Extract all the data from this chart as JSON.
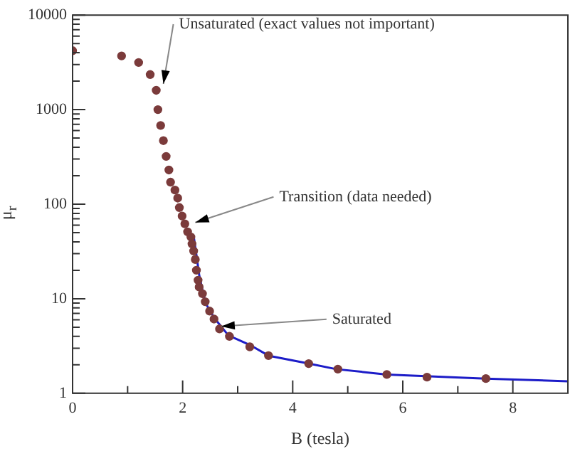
{
  "chart_data": {
    "type": "scatter",
    "xlabel": "B (tesla)",
    "ylabel": "μ$_{r}$",
    "log": "y",
    "grid": false,
    "legend": false,
    "xlim": [
      0,
      9
    ],
    "xticks": [
      0,
      {
        "value": 1,
        "label": null
      },
      2,
      {
        "value": 3,
        "label": null
      },
      4,
      {
        "value": 5,
        "label": null
      },
      6,
      {
        "value": 7,
        "label": null
      },
      8
    ],
    "ylim": [
      1,
      10000
    ],
    "yticks": [
      1,
      {
        "value": 2,
        "label": null
      },
      {
        "value": 3,
        "label": null
      },
      {
        "value": 4,
        "label": null
      },
      {
        "value": 5,
        "label": null
      },
      {
        "value": 6,
        "label": null
      },
      {
        "value": 7,
        "label": null
      },
      {
        "value": 8,
        "label": null
      },
      {
        "value": 9,
        "label": null
      },
      10,
      {
        "value": 20,
        "label": null
      },
      {
        "value": 30,
        "label": null
      },
      {
        "value": 40,
        "label": null
      },
      {
        "value": 50,
        "label": null
      },
      {
        "value": 60,
        "label": null
      },
      {
        "value": 70,
        "label": null
      },
      {
        "value": 80,
        "label": null
      },
      {
        "value": 90,
        "label": null
      },
      100,
      {
        "value": 200,
        "label": null
      },
      {
        "value": 300,
        "label": null
      },
      {
        "value": 400,
        "label": null
      },
      {
        "value": 500,
        "label": null
      },
      {
        "value": 600,
        "label": null
      },
      {
        "value": 700,
        "label": null
      },
      {
        "value": 800,
        "label": null
      },
      {
        "value": 900,
        "label": null
      },
      1000,
      {
        "value": 2000,
        "label": null
      },
      {
        "value": 3000,
        "label": null
      },
      {
        "value": 4000,
        "label": null
      },
      {
        "value": 5000,
        "label": null
      },
      {
        "value": 6000,
        "label": null
      },
      {
        "value": 7000,
        "label": null
      },
      {
        "value": 8000,
        "label": null
      },
      {
        "value": 9000,
        "label": null
      },
      10000
    ],
    "series": [
      {
        "type": "scatter",
        "marker": "circle",
        "color": "#7b3b3b",
        "x": [
          0,
          0.89,
          1.2,
          1.41,
          1.52,
          1.55,
          1.6,
          1.65,
          1.7,
          1.75,
          1.78,
          1.86,
          1.91,
          1.94,
          1.99,
          2.04,
          2.09,
          2.15,
          2.17,
          2.2,
          2.23,
          2.25,
          2.28,
          2.3,
          2.36,
          2.41,
          2.49,
          2.57,
          2.67,
          2.85,
          3.22,
          3.56,
          4.29,
          4.82,
          5.71,
          6.44,
          7.51
        ],
        "values": [
          4200,
          3700,
          3150,
          2350,
          1600,
          1000,
          680,
          470,
          320,
          230,
          171,
          141,
          116,
          92,
          75,
          62,
          51,
          45,
          38,
          32,
          26,
          20,
          15.7,
          13.3,
          11.3,
          9.3,
          7.4,
          6.1,
          4.8,
          4.0,
          3.1,
          2.5,
          2.06,
          1.8,
          1.58,
          1.48,
          1.43
        ]
      },
      {
        "type": "line",
        "marker": "none",
        "line_style": "solid",
        "color": "#1c1cc8",
        "x": [
          2.2,
          2.25,
          2.3,
          2.38,
          2.43,
          2.57,
          2.83,
          3.22,
          3.56,
          4.29,
          4.79,
          5.71,
          7.51,
          9.0
        ],
        "values": [
          46,
          29,
          17.9,
          10.9,
          8.7,
          6.3,
          4.1,
          3.25,
          2.5,
          2.06,
          1.8,
          1.58,
          1.43,
          1.34
        ]
      }
    ],
    "annotations": [
      {
        "text": "Unsaturated (exact values not important)",
        "x": 1.65,
        "y": 1870
      },
      {
        "text": "Transition (data needed)",
        "x": 2.23,
        "y": 64
      },
      {
        "text": "Saturated",
        "x": 2.7,
        "y": 5.1
      }
    ]
  }
}
